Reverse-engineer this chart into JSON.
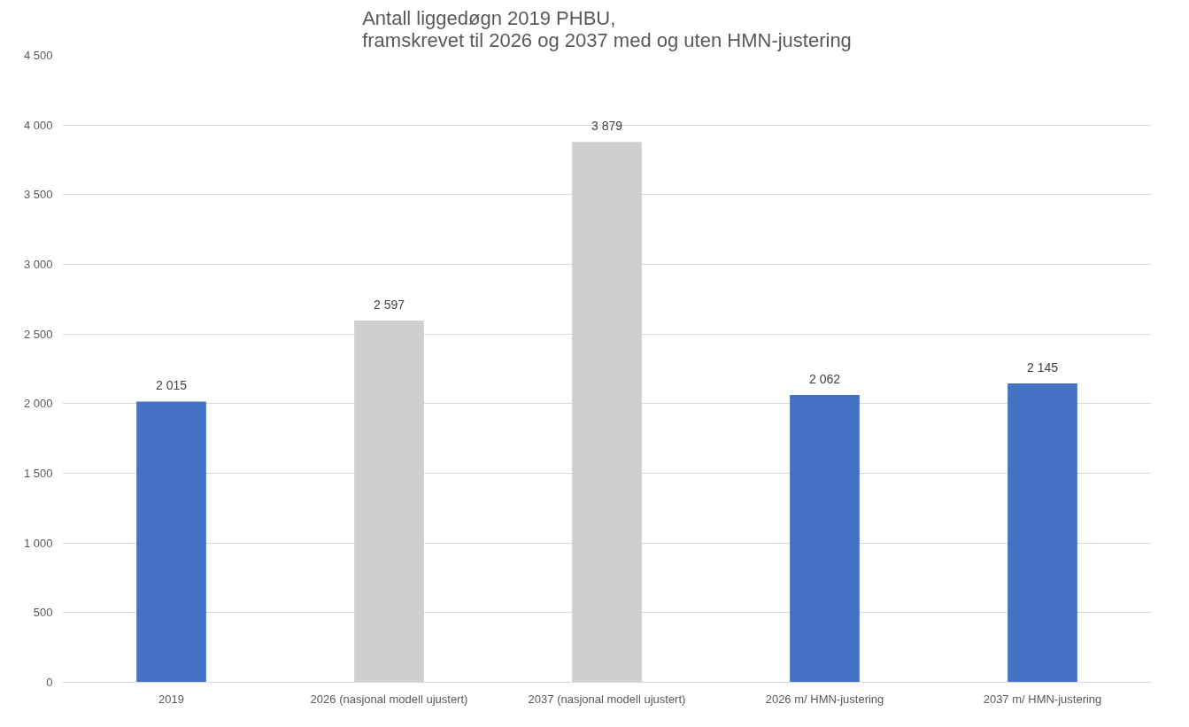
{
  "chart_data": {
    "type": "bar",
    "title": "Antall liggedøgn 2019 PHBU,\nframskrevet til 2026 og 2037 med og uten HMN-justering",
    "categories": [
      "2019",
      "2026 (nasjonal modell ujustert)",
      "2037 (nasjonal modell ujustert)",
      "2026 m/ HMN-justering",
      "2037 m/ HMN-justering"
    ],
    "values": [
      2015,
      2597,
      3879,
      2062,
      2145
    ],
    "colors": [
      "#4472c4",
      "#d0cece",
      "#d0cece",
      "#4472c4",
      "#4472c4"
    ],
    "value_labels": [
      "2 015",
      "2 597",
      "3 879",
      "2 062",
      "2 145"
    ],
    "ylim": [
      0,
      4500
    ],
    "yticks": [
      {
        "value": 0,
        "label": "0"
      },
      {
        "value": 500,
        "label": "500"
      },
      {
        "value": 1000,
        "label": "1 000"
      },
      {
        "value": 1500,
        "label": "1 500"
      },
      {
        "value": 2000,
        "label": "2 000"
      },
      {
        "value": 2500,
        "label": "2 500"
      },
      {
        "value": 3000,
        "label": "3 000"
      },
      {
        "value": 3500,
        "label": "3 500"
      },
      {
        "value": 4000,
        "label": "4 000"
      },
      {
        "value": 4500,
        "label": "4 500"
      }
    ],
    "grid": "y"
  }
}
